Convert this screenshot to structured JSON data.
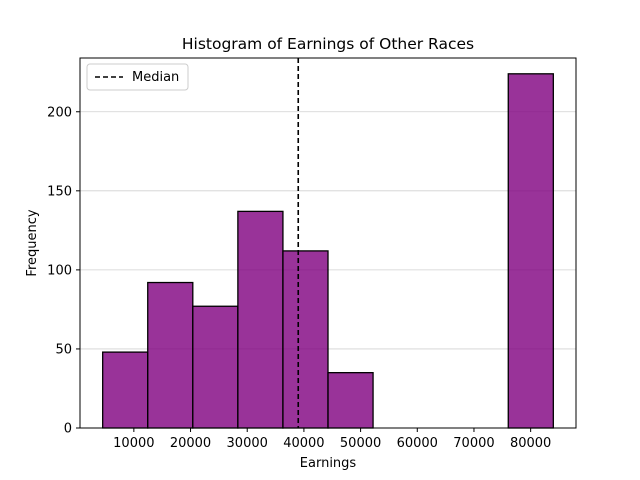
{
  "chart_data": {
    "type": "bar",
    "title": "Histogram of Earnings of Other Races",
    "xlabel": "Earnings",
    "ylabel": "Frequency",
    "bins": [
      {
        "start": 4500,
        "end": 12450,
        "count": 48
      },
      {
        "start": 12450,
        "end": 20400,
        "count": 92
      },
      {
        "start": 20400,
        "end": 28350,
        "count": 77
      },
      {
        "start": 28350,
        "end": 36300,
        "count": 137
      },
      {
        "start": 36300,
        "end": 44250,
        "count": 112
      },
      {
        "start": 44250,
        "end": 52200,
        "count": 35
      },
      {
        "start": 52200,
        "end": 60150,
        "count": 0
      },
      {
        "start": 60150,
        "end": 68100,
        "count": 0
      },
      {
        "start": 68100,
        "end": 76050,
        "count": 0
      },
      {
        "start": 76050,
        "end": 84000,
        "count": 224
      }
    ],
    "xlim": [
      500,
      88000
    ],
    "ylim": [
      0,
      234
    ],
    "x_ticks": [
      10000,
      20000,
      30000,
      40000,
      50000,
      60000,
      70000,
      80000
    ],
    "y_ticks": [
      0,
      50,
      100,
      150,
      200
    ],
    "median": 39000,
    "legend": {
      "entries": [
        "Median"
      ],
      "placement": "top-left"
    },
    "grid": "horizontal",
    "colors": {
      "bar_fill": "#800080",
      "bar_edge": "#000000",
      "median_line": "#000000"
    }
  }
}
